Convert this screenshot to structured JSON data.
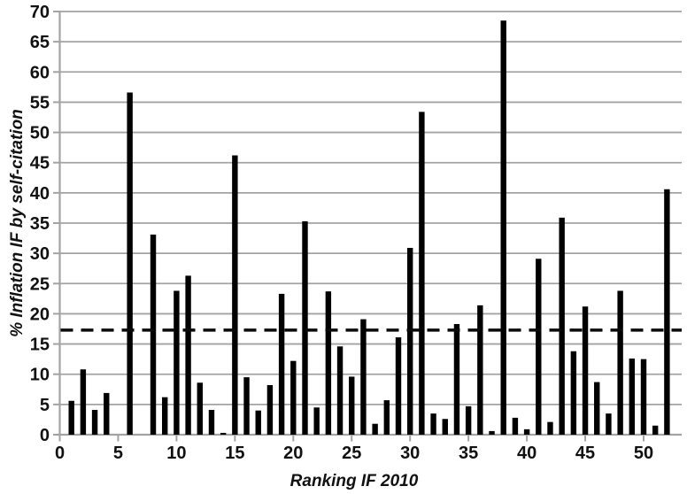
{
  "chart_data": {
    "type": "bar",
    "title": "",
    "xlabel": "Ranking IF 2010",
    "ylabel": "% Inflation IF by self-citation",
    "x": [
      1,
      2,
      3,
      4,
      5,
      6,
      7,
      8,
      9,
      10,
      11,
      12,
      13,
      14,
      15,
      16,
      17,
      18,
      19,
      20,
      21,
      22,
      23,
      24,
      25,
      26,
      27,
      28,
      29,
      30,
      31,
      32,
      33,
      34,
      35,
      36,
      37,
      38,
      39,
      40,
      41,
      42,
      43,
      44,
      45,
      46,
      47,
      48,
      49,
      50,
      51,
      52
    ],
    "values": [
      5.6,
      10.8,
      4.1,
      6.9,
      0,
      56.6,
      0,
      33.1,
      6.2,
      23.8,
      26.3,
      8.6,
      4.1,
      0.3,
      46.2,
      9.5,
      4.0,
      8.2,
      23.3,
      12.2,
      35.3,
      4.5,
      23.7,
      14.6,
      9.6,
      19.1,
      1.8,
      5.7,
      16.1,
      30.9,
      53.4,
      3.5,
      2.6,
      18.3,
      4.7,
      21.4,
      0.6,
      68.5,
      2.8,
      0.9,
      29.1,
      2.1,
      35.9,
      13.8,
      21.2,
      8.7,
      3.5,
      23.8,
      12.6,
      12.5,
      1.5,
      40.6
    ],
    "xlim": [
      0,
      53.2
    ],
    "ylim": [
      0,
      70
    ],
    "xticks": [
      0,
      5,
      10,
      15,
      20,
      25,
      30,
      35,
      40,
      45,
      50
    ],
    "yticks": [
      0,
      5,
      10,
      15,
      20,
      25,
      30,
      35,
      40,
      45,
      50,
      55,
      60,
      65,
      70
    ],
    "grid": "horizontal",
    "legend": "none",
    "threshold_line": {
      "value": 17.3,
      "style": "dashed"
    },
    "colors": {
      "bar": "#000000",
      "grid": "#a3a3a3",
      "axis": "#a3a3a3",
      "threshold": "#0a0a0a",
      "text": "#111111",
      "background": "#ffffff"
    }
  }
}
